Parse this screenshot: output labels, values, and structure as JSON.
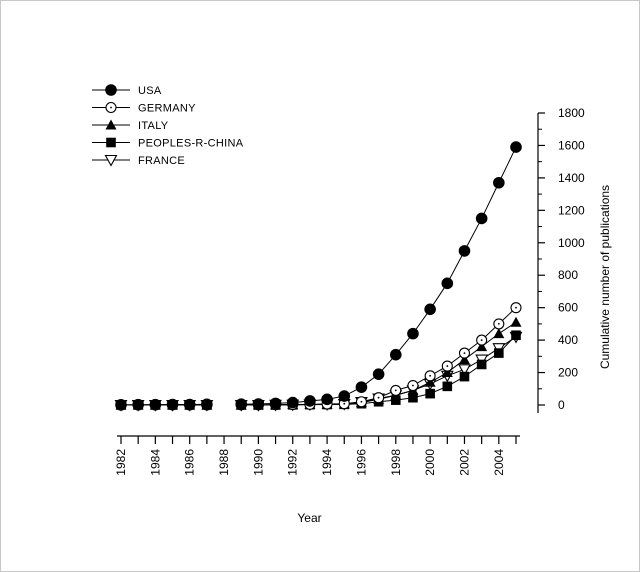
{
  "chart_data": {
    "type": "line",
    "x": [
      1982,
      1983,
      1984,
      1985,
      1986,
      1987,
      1989,
      1990,
      1991,
      1992,
      1993,
      1994,
      1995,
      1996,
      1997,
      1998,
      1999,
      2000,
      2001,
      2002,
      2003,
      2004,
      2005
    ],
    "xticks": [
      "1982",
      "1984",
      "1986",
      "1988",
      "1990",
      "1992",
      "1994",
      "1996",
      "1998",
      "2000",
      "2002",
      "2004"
    ],
    "xlim": [
      1982,
      2005
    ],
    "ylim": [
      0,
      1800
    ],
    "yticks": [
      "0",
      "200",
      "400",
      "600",
      "800",
      "1000",
      "1200",
      "1400",
      "1600",
      "1800"
    ],
    "xlabel": "Year",
    "ylabel": "Cumulative number of publications",
    "y_axis_position": "right",
    "legend_position": "top-left",
    "grid": false,
    "series": [
      {
        "name": "USA",
        "marker": "filled-circle",
        "color": "#000000",
        "values": [
          1,
          2,
          2,
          3,
          3,
          4,
          5,
          6,
          10,
          15,
          25,
          35,
          55,
          110,
          190,
          310,
          440,
          590,
          750,
          950,
          1150,
          1370,
          1590
        ]
      },
      {
        "name": "GERMANY",
        "marker": "open-circle",
        "color": "#000000",
        "values": [
          0,
          0,
          0,
          0,
          0,
          0,
          1,
          1,
          2,
          3,
          4,
          6,
          8,
          20,
          45,
          90,
          120,
          180,
          240,
          320,
          400,
          500,
          600
        ]
      },
      {
        "name": "ITALY",
        "marker": "filled-triangle",
        "color": "#000000",
        "values": [
          0,
          0,
          0,
          0,
          0,
          0,
          0,
          0,
          1,
          2,
          3,
          4,
          6,
          15,
          35,
          60,
          90,
          140,
          200,
          280,
          360,
          440,
          510
        ]
      },
      {
        "name": "PEOPLES-R-CHINA",
        "marker": "filled-square",
        "color": "#000000",
        "values": [
          0,
          0,
          0,
          0,
          0,
          0,
          0,
          0,
          0,
          1,
          2,
          3,
          4,
          8,
          20,
          30,
          45,
          70,
          115,
          175,
          250,
          320,
          430
        ]
      },
      {
        "name": "FRANCE",
        "marker": "open-triangle-down",
        "color": "#000000",
        "values": [
          0,
          0,
          0,
          0,
          0,
          0,
          0,
          0,
          1,
          2,
          3,
          4,
          6,
          18,
          40,
          60,
          90,
          130,
          180,
          220,
          280,
          350,
          420
        ]
      }
    ]
  }
}
